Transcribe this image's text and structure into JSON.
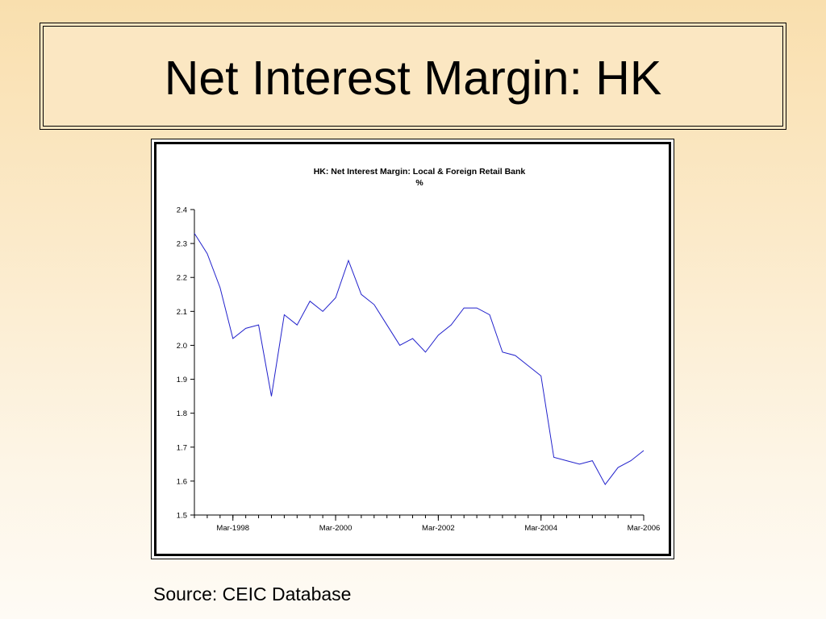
{
  "slide": {
    "title": "Net Interest Margin: HK",
    "source": "Source: CEIC Database"
  },
  "chart_data": {
    "type": "line",
    "title": "HK: Net Interest Margin: Local & Foreign Retail Bank",
    "subtitle": "%",
    "xlabel": "",
    "ylabel": "",
    "ylim": [
      1.5,
      2.4
    ],
    "yticks": [
      "2.4",
      "2.3",
      "2.2",
      "2.1",
      "2.0",
      "1.9",
      "1.8",
      "1.7",
      "1.6",
      "1.5"
    ],
    "xticks": [
      "Mar-1998",
      "Mar-2000",
      "Mar-2002",
      "Mar-2004",
      "Mar-2006"
    ],
    "x_range": [
      "Jun-1997",
      "Mar-2006"
    ],
    "frequency": "quarterly",
    "grid": false,
    "legend": "none",
    "line_color": "#2222cc",
    "series": [
      {
        "x": [
          "Jun-1997",
          "Sep-1997",
          "Dec-1997",
          "Mar-1998",
          "Jun-1998",
          "Sep-1998",
          "Dec-1998",
          "Mar-1999",
          "Jun-1999",
          "Sep-1999",
          "Dec-1999",
          "Mar-2000",
          "Jun-2000",
          "Sep-2000",
          "Dec-2000",
          "Mar-2001",
          "Jun-2001",
          "Sep-2001",
          "Dec-2001",
          "Mar-2002",
          "Jun-2002",
          "Sep-2002",
          "Dec-2002",
          "Mar-2003",
          "Jun-2003",
          "Sep-2003",
          "Dec-2003",
          "Mar-2004",
          "Jun-2004",
          "Sep-2004",
          "Dec-2004",
          "Mar-2005",
          "Jun-2005",
          "Sep-2005",
          "Dec-2005",
          "Mar-2006"
        ],
        "values": [
          2.33,
          2.27,
          2.17,
          2.02,
          2.05,
          2.06,
          1.85,
          2.09,
          2.06,
          2.13,
          2.1,
          2.14,
          2.25,
          2.15,
          2.12,
          2.06,
          2.0,
          2.02,
          1.98,
          2.03,
          2.06,
          2.11,
          2.11,
          2.09,
          1.98,
          1.97,
          1.94,
          1.91,
          1.67,
          1.66,
          1.65,
          1.66,
          1.59,
          1.64,
          1.66,
          1.69
        ]
      }
    ]
  }
}
